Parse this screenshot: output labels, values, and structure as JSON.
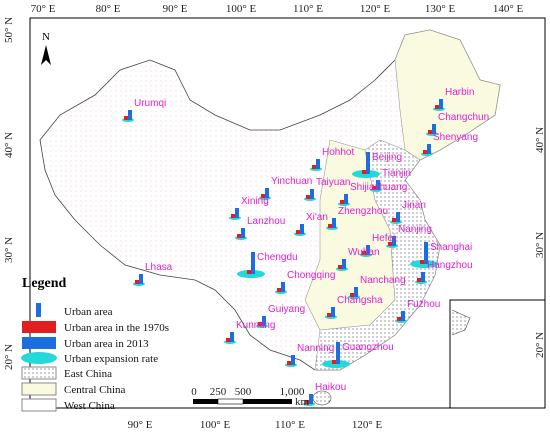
{
  "axes": {
    "top": [
      "70° E",
      "80° E",
      "90° E",
      "100° E",
      "110° E",
      "120° E",
      "130° E",
      "140° E"
    ],
    "bottom": [
      "90° E",
      "100° E",
      "110° E",
      "120° E"
    ],
    "left": [
      "50° N",
      "40° N",
      "30° N",
      "20° N"
    ],
    "right": [
      "40° N",
      "30° N",
      "20° N"
    ]
  },
  "north": "N",
  "cities": [
    "Harbin",
    "Changchun",
    "Shenyang",
    "Hohhot",
    "Beijing",
    "Tianjin",
    "Yinchuan",
    "Taiyuan",
    "Shijiazhuang",
    "Jinan",
    "Xining",
    "Lanzhou",
    "Xi'an",
    "Zhengzhou",
    "Nanjing",
    "Hefei",
    "Shanghai",
    "Chengdu",
    "Wuhan",
    "Hangzhou",
    "Chongqing",
    "Nanchang",
    "Lhasa",
    "Changsha",
    "Fuzhou",
    "Guiyang",
    "Kunming",
    "Guangzhou",
    "Nanning",
    "Haikou",
    "Urumqi"
  ],
  "legend": {
    "title": "Legend",
    "items": [
      "Urban area",
      "Urban area in the 1970s",
      "Urban area in 2013",
      "Urban expansion rate",
      "East China",
      "Central China",
      "West China"
    ]
  },
  "scale": {
    "labels": [
      "0",
      "250",
      "500",
      "1,000"
    ],
    "unit": "km"
  }
}
